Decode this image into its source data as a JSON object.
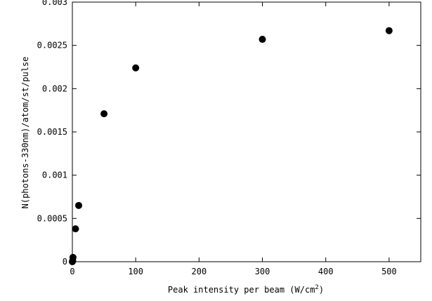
{
  "chart_data": {
    "type": "scatter",
    "xlabel": "Peak intensity per beam (W/cm",
    "xlabel_sup": "2",
    "xlabel_end": ")",
    "ylabel": "N(photons-330nm)/atom/st/pulse",
    "xlim": [
      0,
      550
    ],
    "ylim": [
      0,
      0.003
    ],
    "x_ticks": [
      0,
      100,
      200,
      300,
      400,
      500
    ],
    "x_tick_labels": [
      "0",
      "100",
      "200",
      "300",
      "400",
      "500"
    ],
    "y_ticks": [
      0,
      0.0005,
      0.001,
      0.0015,
      0.002,
      0.0025,
      0.003
    ],
    "y_tick_labels": [
      "0",
      "0.0005",
      "0.001",
      "0.0015",
      "0.002",
      "0.0025",
      "0.003"
    ],
    "grid": false,
    "marker_color": "#000000",
    "series": [
      {
        "x": [
          0,
          0.5,
          1,
          5,
          10,
          50,
          100,
          300,
          500
        ],
        "y": [
          0.0,
          1e-05,
          5e-05,
          0.00038,
          0.00065,
          0.00171,
          0.00224,
          0.00257,
          0.00267
        ]
      }
    ]
  }
}
